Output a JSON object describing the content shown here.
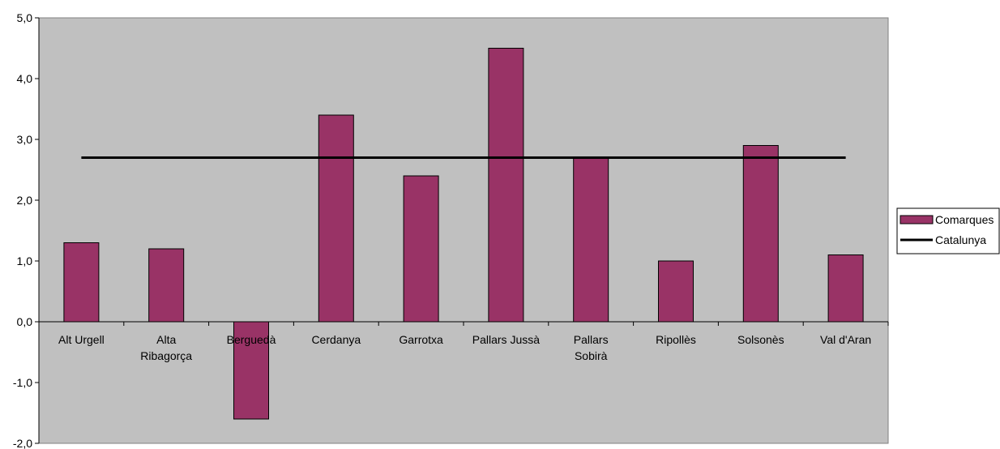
{
  "chart_data": {
    "type": "bar",
    "categories": [
      [
        "Alt Urgell"
      ],
      [
        "Alta",
        "Ribagorça"
      ],
      [
        "Berguedà"
      ],
      [
        "Cerdanya"
      ],
      [
        "Garrotxa"
      ],
      [
        "Pallars Jussà"
      ],
      [
        "Pallars",
        "Sobirà"
      ],
      [
        "Ripollès"
      ],
      [
        "Solsonès"
      ],
      [
        "Val d'Aran"
      ]
    ],
    "series": [
      {
        "name": "Comarques",
        "kind": "bar",
        "color": "#993366",
        "values": [
          1.3,
          1.2,
          -1.6,
          3.4,
          2.4,
          4.5,
          2.7,
          1.0,
          2.9,
          1.1
        ]
      },
      {
        "name": "Catalunya",
        "kind": "line",
        "color": "#000000",
        "values": [
          2.7,
          2.7,
          2.7,
          2.7,
          2.7,
          2.7,
          2.7,
          2.7,
          2.7,
          2.7
        ]
      }
    ],
    "ylim": [
      -2,
      5
    ],
    "yticks": [
      -2,
      -1,
      0,
      1,
      2,
      3,
      4,
      5
    ],
    "ytick_labels": [
      "-2,0",
      "-1,0",
      "0,0",
      "1,0",
      "2,0",
      "3,0",
      "4,0",
      "5,0"
    ],
    "plot_background": "#c0c0c0",
    "grid": false,
    "legend_position": "right",
    "title": "",
    "xlabel": "",
    "ylabel": ""
  }
}
